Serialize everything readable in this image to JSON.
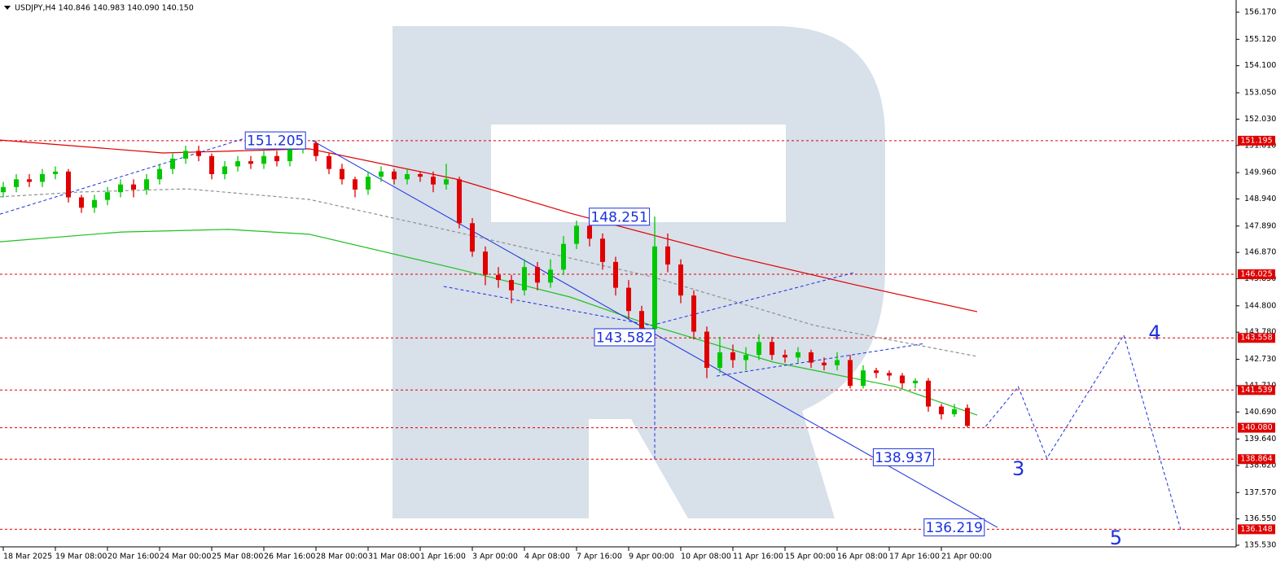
{
  "chart_data": {
    "type": "candlestick",
    "title": "USDJPY,H4  140.846 140.983 140.090 140.150",
    "ylim": [
      135.467,
      156.643
    ],
    "yticks": [
      {
        "value": 156.17,
        "label": "156.170"
      },
      {
        "value": 155.12,
        "label": "155.120"
      },
      {
        "value": 154.1,
        "label": "154.100"
      },
      {
        "value": 153.05,
        "label": "153.050"
      },
      {
        "value": 152.03,
        "label": "152.030"
      },
      {
        "value": 151.01,
        "label": "151.010"
      },
      {
        "value": 149.96,
        "label": "149.960"
      },
      {
        "value": 148.94,
        "label": "148.940"
      },
      {
        "value": 147.89,
        "label": "147.890"
      },
      {
        "value": 146.87,
        "label": "146.870"
      },
      {
        "value": 145.85,
        "label": "145.850"
      },
      {
        "value": 144.8,
        "label": "144.800"
      },
      {
        "value": 143.78,
        "label": "143.780"
      },
      {
        "value": 142.73,
        "label": "142.730"
      },
      {
        "value": 141.71,
        "label": "141.710"
      },
      {
        "value": 140.69,
        "label": "140.690"
      },
      {
        "value": 139.64,
        "label": "139.640"
      },
      {
        "value": 138.62,
        "label": "138.620"
      },
      {
        "value": 137.57,
        "label": "137.570"
      },
      {
        "value": 136.55,
        "label": "136.550"
      },
      {
        "value": 135.53,
        "label": "135.530"
      }
    ],
    "xticks": [
      {
        "value": 0,
        "label": "18 Mar 2025"
      },
      {
        "value": 4,
        "label": "19 Mar 08:00"
      },
      {
        "value": 8,
        "label": "20 Mar 16:00"
      },
      {
        "value": 12,
        "label": "24 Mar 00:00"
      },
      {
        "value": 16,
        "label": "25 Mar 08:00"
      },
      {
        "value": 20,
        "label": "26 Mar 16:00"
      },
      {
        "value": 24,
        "label": "28 Mar 00:00"
      },
      {
        "value": 28,
        "label": "31 Mar 08:00"
      },
      {
        "value": 32,
        "label": "1 Apr 16:00"
      },
      {
        "value": 36,
        "label": "3 Apr 00:00"
      },
      {
        "value": 40,
        "label": "4 Apr 08:00"
      },
      {
        "value": 44,
        "label": "7 Apr 16:00"
      },
      {
        "value": 48,
        "label": "9 Apr 00:00"
      },
      {
        "value": 52,
        "label": "10 Apr 08:00"
      },
      {
        "value": 56,
        "label": "11 Apr 16:00"
      },
      {
        "value": 60,
        "label": "15 Apr 00:00"
      },
      {
        "value": 64,
        "label": "16 Apr 08:00"
      },
      {
        "value": 68,
        "label": "17 Apr 16:00"
      },
      {
        "value": 72,
        "label": "21 Apr 00:00"
      }
    ],
    "up_color": "#00c800",
    "down_color": "#e00000",
    "open": [
      149.2,
      149.4,
      149.7,
      149.6,
      149.9,
      150.0,
      149.0,
      148.6,
      148.9,
      149.2,
      149.5,
      149.3,
      149.7,
      150.1,
      150.5,
      150.8,
      150.6,
      149.9,
      150.2,
      150.4,
      150.3,
      150.6,
      150.4,
      150.9,
      151.1,
      150.6,
      150.1,
      149.7,
      149.3,
      149.8,
      150.0,
      149.7,
      149.9,
      149.8,
      149.5,
      149.7,
      148.0,
      146.9,
      146.0,
      145.8,
      145.4,
      146.3,
      145.7,
      146.2,
      147.2,
      147.9,
      147.4,
      146.5,
      145.5,
      144.6,
      143.9,
      147.1,
      146.4,
      145.2,
      143.8,
      142.4,
      143.0,
      142.7,
      142.9,
      143.4,
      142.9,
      142.8,
      143.0,
      142.6,
      142.5,
      142.7,
      141.7,
      142.3,
      142.2,
      142.1,
      141.8,
      141.9,
      140.9,
      140.6,
      140.846
    ],
    "high": [
      149.6,
      149.9,
      149.9,
      150.1,
      150.2,
      150.1,
      149.1,
      149.1,
      149.4,
      149.7,
      149.7,
      149.9,
      150.3,
      150.7,
      151.0,
      151.0,
      150.7,
      150.4,
      150.6,
      150.6,
      150.8,
      150.8,
      151.1,
      151.205,
      151.2,
      150.7,
      150.3,
      149.8,
      150.0,
      150.2,
      150.1,
      150.1,
      150.0,
      150.0,
      150.3,
      149.8,
      148.2,
      147.1,
      146.3,
      146.0,
      146.6,
      146.5,
      146.6,
      147.5,
      148.1,
      148.1,
      147.6,
      146.7,
      145.8,
      144.8,
      148.251,
      147.6,
      146.6,
      145.4,
      144.0,
      143.6,
      143.3,
      143.2,
      143.7,
      143.6,
      143.1,
      143.2,
      143.1,
      142.8,
      143.0,
      142.9,
      142.5,
      142.4,
      142.3,
      142.2,
      142.0,
      142.0,
      141.0,
      141.0,
      140.983
    ],
    "low": [
      149.0,
      149.2,
      149.4,
      149.4,
      149.7,
      148.8,
      148.4,
      148.4,
      148.7,
      149.0,
      149.0,
      149.1,
      149.5,
      149.9,
      150.3,
      150.4,
      149.7,
      149.7,
      150.0,
      150.1,
      150.1,
      150.2,
      150.2,
      150.7,
      150.4,
      149.9,
      149.5,
      149.0,
      149.1,
      149.6,
      149.5,
      149.5,
      149.6,
      149.2,
      149.3,
      147.8,
      146.7,
      145.6,
      145.5,
      144.9,
      145.2,
      145.4,
      145.5,
      146.0,
      147.0,
      147.1,
      146.2,
      145.2,
      144.3,
      143.582,
      143.7,
      146.1,
      144.9,
      143.5,
      142.0,
      142.2,
      142.4,
      142.3,
      142.7,
      142.7,
      142.6,
      142.6,
      142.4,
      142.3,
      142.3,
      141.6,
      141.6,
      142.0,
      141.9,
      141.6,
      141.6,
      140.7,
      140.4,
      140.5,
      140.09
    ],
    "close": [
      149.4,
      149.7,
      149.6,
      149.9,
      150.0,
      149.0,
      148.6,
      148.9,
      149.2,
      149.5,
      149.3,
      149.7,
      150.1,
      150.5,
      150.8,
      150.6,
      149.9,
      150.2,
      150.4,
      150.3,
      150.6,
      150.4,
      150.9,
      151.1,
      150.6,
      150.1,
      149.7,
      149.3,
      149.8,
      150.0,
      149.7,
      149.9,
      149.8,
      149.5,
      149.7,
      148.0,
      146.9,
      146.0,
      145.8,
      145.4,
      146.3,
      145.7,
      146.2,
      147.2,
      147.9,
      147.4,
      146.5,
      145.5,
      144.6,
      143.9,
      147.1,
      146.4,
      145.2,
      143.8,
      142.4,
      143.0,
      142.7,
      142.9,
      143.4,
      142.9,
      142.8,
      143.0,
      142.6,
      142.5,
      142.7,
      141.7,
      142.3,
      142.2,
      142.1,
      141.8,
      141.9,
      140.9,
      140.6,
      140.8,
      140.15
    ],
    "indicators": [
      {
        "color": "#e00000",
        "dash": false,
        "x": [
          -0.25,
          12.25,
          23.5,
          34.75,
          43.5,
          56,
          65.4,
          74.75
        ],
        "values": [
          151.22,
          150.72,
          150.88,
          149.71,
          148.39,
          146.72,
          145.61,
          144.57
        ]
      },
      {
        "color": "#909090",
        "dash": true,
        "x": [
          -0.25,
          6,
          14.1,
          23.5,
          34.75,
          49.75,
          62.25,
          74.75
        ],
        "values": [
          149.02,
          149.21,
          149.33,
          148.92,
          147.66,
          145.93,
          144.04,
          142.84
        ]
      },
      {
        "color": "#20c020",
        "dash": false,
        "x": [
          -0.25,
          9.1,
          17.25,
          23.5,
          34.75,
          43.5,
          49.75,
          59.1,
          68.5,
          74.75
        ],
        "values": [
          147.28,
          147.66,
          147.76,
          147.57,
          146.24,
          145.14,
          144.04,
          142.62,
          141.67,
          140.57
        ]
      }
    ],
    "trendlines": [
      {
        "color": "#1a30e0",
        "dash": false,
        "x": [
          23.7,
          76.3
        ],
        "values": [
          151.205,
          136.219
        ]
      },
      {
        "color": "#1a30e0",
        "dash": true,
        "x": [
          -0.25,
          18.5
        ],
        "values": [
          148.35,
          151.28
        ]
      },
      {
        "color": "#1a30e0",
        "dash": true,
        "x": [
          33.8,
          49.75
        ],
        "values": [
          145.55,
          144.04
        ]
      },
      {
        "color": "#1a30e0",
        "dash": true,
        "x": [
          49.75,
          65.4
        ],
        "values": [
          144.04,
          146.1
        ]
      },
      {
        "color": "#1a30e0",
        "dash": true,
        "x": [
          54.75,
          70.7
        ],
        "values": [
          142.08,
          143.34
        ]
      },
      {
        "color": "#1a30e0",
        "dash": true,
        "x": [
          50,
          50
        ],
        "values": [
          148.251,
          138.86
        ]
      }
    ],
    "projection": {
      "color": "#1a30e0",
      "x": [
        75.4,
        77.9,
        80.1,
        86,
        90.4
      ],
      "values": [
        140.13,
        141.67,
        138.9,
        143.66,
        136.09
      ],
      "point_labels": [
        null,
        null,
        "3",
        "4",
        "5"
      ]
    },
    "levels": [
      151.195,
      146.025,
      143.558,
      141.539,
      {
        "value": 140.08,
        "label": "140.080"
      },
      138.864,
      136.148
    ],
    "level_color": "#e00000",
    "price_labels": [
      {
        "x": 23.2,
        "value": 151.205
      },
      {
        "x": 49.6,
        "value": 148.251
      },
      {
        "x": 50,
        "value": 143.582
      },
      {
        "x": 71.4,
        "value": 138.937
      },
      {
        "x": 75.3,
        "value": 136.219
      }
    ]
  }
}
